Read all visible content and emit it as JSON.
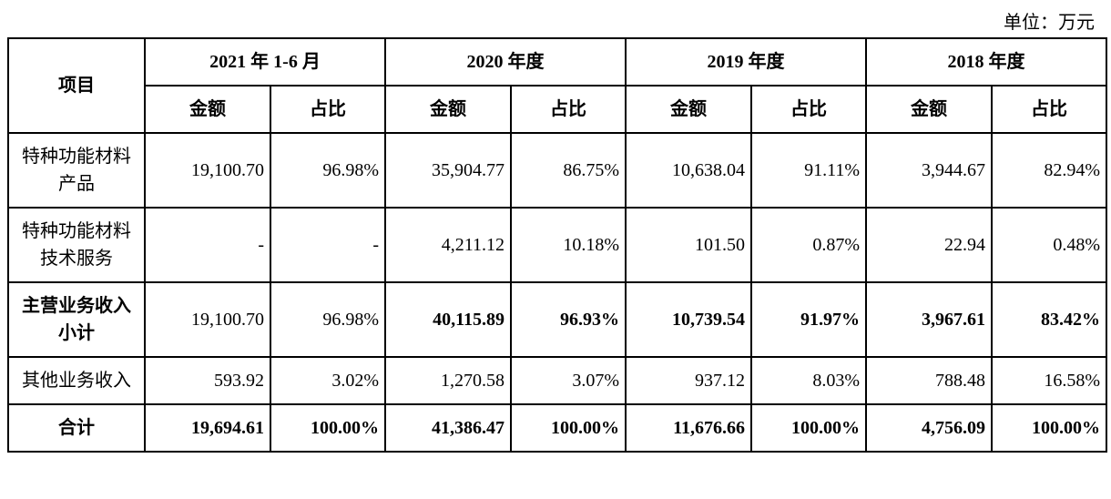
{
  "unit_label": "单位：万元",
  "headers": {
    "project": "项目",
    "periods": [
      "2021 年 1-6 月",
      "2020 年度",
      "2019 年度",
      "2018 年度"
    ],
    "sub": {
      "amount": "金额",
      "pct": "占比"
    }
  },
  "rows": [
    {
      "label": "特种功能材料产品",
      "bold": false,
      "cells": [
        {
          "amount": "19,100.70",
          "pct": "96.98%",
          "bold": false
        },
        {
          "amount": "35,904.77",
          "pct": "86.75%",
          "bold": false
        },
        {
          "amount": "10,638.04",
          "pct": "91.11%",
          "bold": false
        },
        {
          "amount": "3,944.67",
          "pct": "82.94%",
          "bold": false
        }
      ]
    },
    {
      "label": "特种功能材料技术服务",
      "bold": false,
      "cells": [
        {
          "amount": "-",
          "pct": "-",
          "bold": false
        },
        {
          "amount": "4,211.12",
          "pct": "10.18%",
          "bold": false
        },
        {
          "amount": "101.50",
          "pct": "0.87%",
          "bold": false
        },
        {
          "amount": "22.94",
          "pct": "0.48%",
          "bold": false
        }
      ]
    },
    {
      "label": "主营业务收入小计",
      "bold": true,
      "cells": [
        {
          "amount": "19,100.70",
          "pct": "96.98%",
          "bold": false
        },
        {
          "amount": "40,115.89",
          "pct": "96.93%",
          "bold": true
        },
        {
          "amount": "10,739.54",
          "pct": "91.97%",
          "bold": true
        },
        {
          "amount": "3,967.61",
          "pct": "83.42%",
          "bold": true
        }
      ]
    },
    {
      "label": "其他业务收入",
      "bold": false,
      "cells": [
        {
          "amount": "593.92",
          "pct": "3.02%",
          "bold": false
        },
        {
          "amount": "1,270.58",
          "pct": "3.07%",
          "bold": false
        },
        {
          "amount": "937.12",
          "pct": "8.03%",
          "bold": false
        },
        {
          "amount": "788.48",
          "pct": "16.58%",
          "bold": false
        }
      ]
    },
    {
      "label": "合计",
      "bold": true,
      "cells": [
        {
          "amount": "19,694.61",
          "pct": "100.00%",
          "bold": true
        },
        {
          "amount": "41,386.47",
          "pct": "100.00%",
          "bold": true
        },
        {
          "amount": "11,676.66",
          "pct": "100.00%",
          "bold": true
        },
        {
          "amount": "4,756.09",
          "pct": "100.00%",
          "bold": true
        }
      ]
    }
  ]
}
